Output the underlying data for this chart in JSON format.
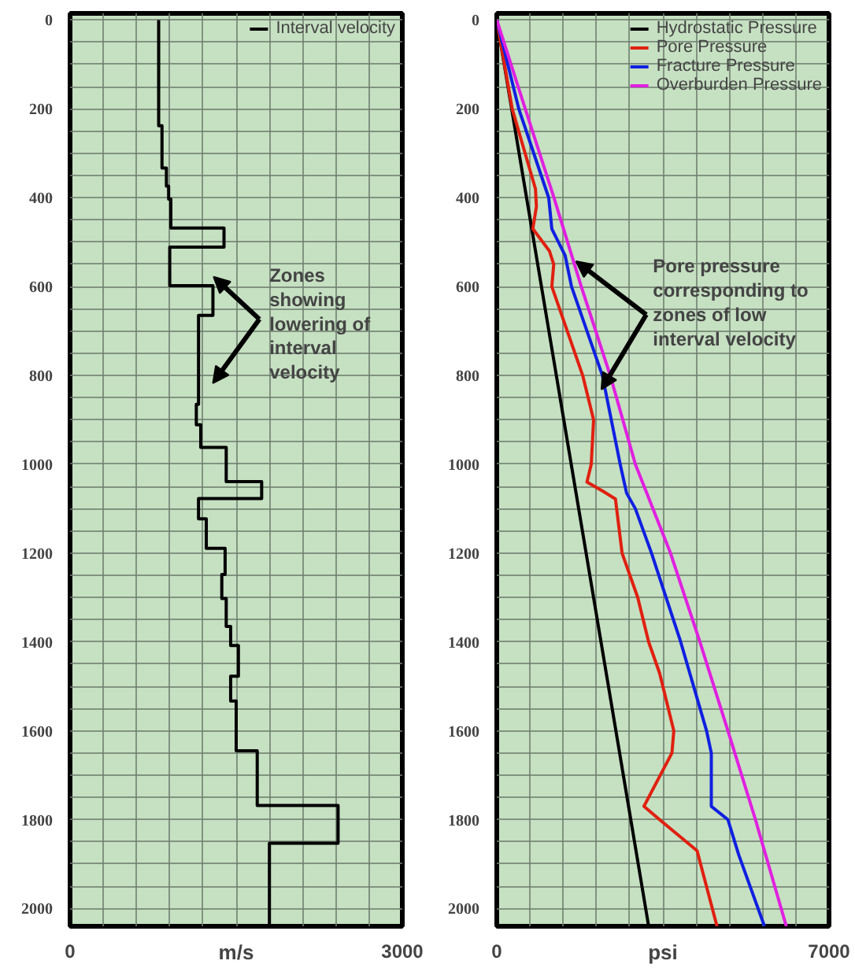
{
  "chart_data": [
    {
      "type": "line",
      "xlabel": "m/s",
      "xlim": [
        0,
        3000
      ],
      "ylim": [
        2040,
        -15
      ],
      "xticks": [
        0,
        {
          "value": 300,
          "label": null
        },
        {
          "value": 600,
          "label": null
        },
        {
          "value": 900,
          "label": null
        },
        {
          "value": 1200,
          "label": null
        },
        {
          "value": 1500,
          "label": null
        },
        {
          "value": 1800,
          "label": null
        },
        {
          "value": 2100,
          "label": null
        },
        {
          "value": 2400,
          "label": null
        },
        {
          "value": 2700,
          "label": null
        },
        3000
      ],
      "yticks": [
        0,
        {
          "value": 50,
          "label": null
        },
        {
          "value": 100,
          "label": null
        },
        {
          "value": 150,
          "label": null
        },
        200,
        {
          "value": 250,
          "label": null
        },
        {
          "value": 300,
          "label": null
        },
        {
          "value": 350,
          "label": null
        },
        400,
        {
          "value": 450,
          "label": null
        },
        {
          "value": 500,
          "label": null
        },
        {
          "value": 550,
          "label": null
        },
        600,
        {
          "value": 650,
          "label": null
        },
        {
          "value": 700,
          "label": null
        },
        {
          "value": 750,
          "label": null
        },
        800,
        {
          "value": 850,
          "label": null
        },
        {
          "value": 900,
          "label": null
        },
        {
          "value": 950,
          "label": null
        },
        1000,
        {
          "value": 1050,
          "label": null
        },
        {
          "value": 1100,
          "label": null
        },
        {
          "value": 1150,
          "label": null
        },
        1200,
        {
          "value": 1250,
          "label": null
        },
        {
          "value": 1300,
          "label": null
        },
        {
          "value": 1350,
          "label": null
        },
        1400,
        {
          "value": 1450,
          "label": null
        },
        {
          "value": 1500,
          "label": null
        },
        {
          "value": 1550,
          "label": null
        },
        1600,
        {
          "value": 1650,
          "label": null
        },
        {
          "value": 1700,
          "label": null
        },
        {
          "value": 1750,
          "label": null
        },
        1800,
        {
          "value": 1850,
          "label": null
        },
        {
          "value": 1900,
          "label": null
        },
        {
          "value": 1950,
          "label": null
        },
        2000
      ],
      "grid": true,
      "legend": "top right",
      "series": [
        {
          "name": "Interval velocity",
          "color": "#000000",
          "x": [
            800,
            800,
            830,
            830,
            870,
            870,
            890,
            890,
            910,
            910,
            1390,
            1390,
            900,
            900,
            1290,
            1290,
            1160,
            1160,
            1140,
            1140,
            1180,
            1180,
            1410,
            1410,
            1730,
            1730,
            1160,
            1160,
            1230,
            1230,
            1400,
            1400,
            1370,
            1370,
            1410,
            1410,
            1450,
            1450,
            1520,
            1520,
            1450,
            1450,
            1500,
            1500,
            1690,
            1690,
            2420,
            2420,
            1800,
            1800
          ],
          "values": [
            0,
            238,
            238,
            333,
            333,
            374,
            374,
            403,
            403,
            468,
            468,
            511,
            511,
            598,
            598,
            665,
            665,
            865,
            865,
            911,
            911,
            962,
            962,
            1039,
            1039,
            1077,
            1077,
            1123,
            1123,
            1189,
            1189,
            1248,
            1248,
            1302,
            1302,
            1365,
            1365,
            1408,
            1408,
            1477,
            1477,
            1533,
            1533,
            1645,
            1645,
            1768,
            1768,
            1853,
            1853,
            2040
          ]
        }
      ],
      "annotations": [
        {
          "text": "Zones\nshowing\nlowering of\ninterval\nvelocity",
          "x": 1296,
          "y": 578
        }
      ]
    },
    {
      "type": "line",
      "xlabel": "psi",
      "xlim": [
        0,
        7000
      ],
      "ylim": [
        2040,
        -15
      ],
      "xticks": [
        0,
        {
          "value": 700,
          "label": null
        },
        {
          "value": 1400,
          "label": null
        },
        {
          "value": 2100,
          "label": null
        },
        {
          "value": 2800,
          "label": null
        },
        {
          "value": 3500,
          "label": null
        },
        {
          "value": 4200,
          "label": null
        },
        {
          "value": 4900,
          "label": null
        },
        {
          "value": 5600,
          "label": null
        },
        {
          "value": 6300,
          "label": null
        },
        7000
      ],
      "yticks": [
        0,
        {
          "value": 50,
          "label": null
        },
        {
          "value": 100,
          "label": null
        },
        {
          "value": 150,
          "label": null
        },
        200,
        {
          "value": 250,
          "label": null
        },
        {
          "value": 300,
          "label": null
        },
        {
          "value": 350,
          "label": null
        },
        400,
        {
          "value": 450,
          "label": null
        },
        {
          "value": 500,
          "label": null
        },
        {
          "value": 550,
          "label": null
        },
        600,
        {
          "value": 650,
          "label": null
        },
        {
          "value": 700,
          "label": null
        },
        {
          "value": 750,
          "label": null
        },
        800,
        {
          "value": 850,
          "label": null
        },
        {
          "value": 900,
          "label": null
        },
        {
          "value": 950,
          "label": null
        },
        1000,
        {
          "value": 1050,
          "label": null
        },
        {
          "value": 1100,
          "label": null
        },
        {
          "value": 1150,
          "label": null
        },
        1200,
        {
          "value": 1250,
          "label": null
        },
        {
          "value": 1300,
          "label": null
        },
        {
          "value": 1350,
          "label": null
        },
        1400,
        {
          "value": 1450,
          "label": null
        },
        {
          "value": 1500,
          "label": null
        },
        {
          "value": 1550,
          "label": null
        },
        1600,
        {
          "value": 1650,
          "label": null
        },
        {
          "value": 1700,
          "label": null
        },
        {
          "value": 1750,
          "label": null
        },
        1800,
        {
          "value": 1850,
          "label": null
        },
        {
          "value": 1900,
          "label": null
        },
        {
          "value": 1950,
          "label": null
        },
        2000
      ],
      "grid": true,
      "legend": "top right",
      "series": [
        {
          "name": "Hydrostatic Pressure",
          "color": "#000000",
          "x": [
            0,
            3200
          ],
          "values": [
            0,
            2040
          ]
        },
        {
          "name": "Pore Pressure",
          "color": "#e02010",
          "x": [
            0,
            325,
            815,
            835,
            760,
            1110,
            1200,
            1160,
            1810,
            2040,
            1990,
            1900,
            2225,
            2500,
            2640,
            2970,
            3200,
            3430,
            3730,
            3690,
            3100,
            3430,
            4220,
            4640
          ],
          "values": [
            0,
            200,
            380,
            420,
            470,
            520,
            550,
            600,
            800,
            900,
            1000,
            1040,
            1060,
            1078,
            1200,
            1300,
            1400,
            1470,
            1600,
            1650,
            1770,
            1800,
            1870,
            2040
          ]
        },
        {
          "name": "Fracture Pressure",
          "color": "#1020e0",
          "x": [
            0,
            464,
            1094,
            1160,
            1440,
            1575,
            2225,
            2600,
            2735,
            2920,
            3260,
            3875,
            4420,
            4520,
            4520,
            4870,
            5100,
            5640
          ],
          "values": [
            0,
            200,
            400,
            470,
            530,
            600,
            800,
            1000,
            1065,
            1100,
            1200,
            1400,
            1600,
            1650,
            1770,
            1800,
            1880,
            2040
          ]
        },
        {
          "name": "Overburden Pressure",
          "color": "#e020e0",
          "x": [
            0,
            600,
            1205,
            1780,
            2390,
            2920,
            3660,
            4280,
            4870,
            5450,
            6100
          ],
          "values": [
            0,
            200,
            400,
            600,
            800,
            1000,
            1200,
            1400,
            1600,
            1800,
            2040
          ]
        }
      ],
      "annotations": [
        {
          "text": "Pore pressure\ncorresponding to\nzones of low\ninterval velocity",
          "x": 1670,
          "y": 543
        }
      ]
    }
  ]
}
